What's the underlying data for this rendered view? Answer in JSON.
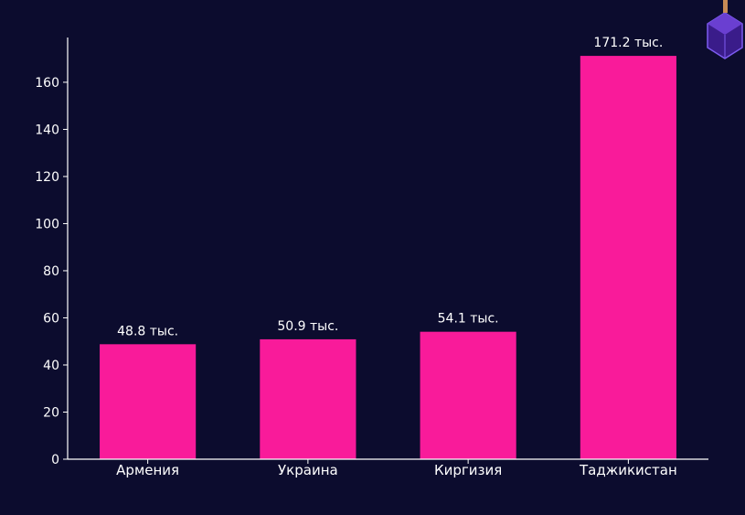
{
  "colors": {
    "background": "#0c0c2e",
    "bar": "#f91b9a",
    "axis": "#ffffff",
    "text": "#ffffff"
  },
  "decoration": {
    "corner_logo_icon": "hexagon-cube-icon"
  },
  "chart_data": {
    "type": "bar",
    "categories": [
      "Армения",
      "Украина",
      "Киргизия",
      "Таджикистан"
    ],
    "values": [
      48.8,
      50.9,
      54.1,
      171.2
    ],
    "data_labels": [
      "48.8 тыс.",
      "50.9 тыс.",
      "54.1 тыс.",
      "171.2 тыс."
    ],
    "yticks": [
      0,
      20,
      40,
      60,
      80,
      100,
      120,
      140,
      160
    ],
    "ylim": [
      0,
      179
    ],
    "grid": false,
    "title": "",
    "xlabel": "",
    "ylabel": ""
  }
}
